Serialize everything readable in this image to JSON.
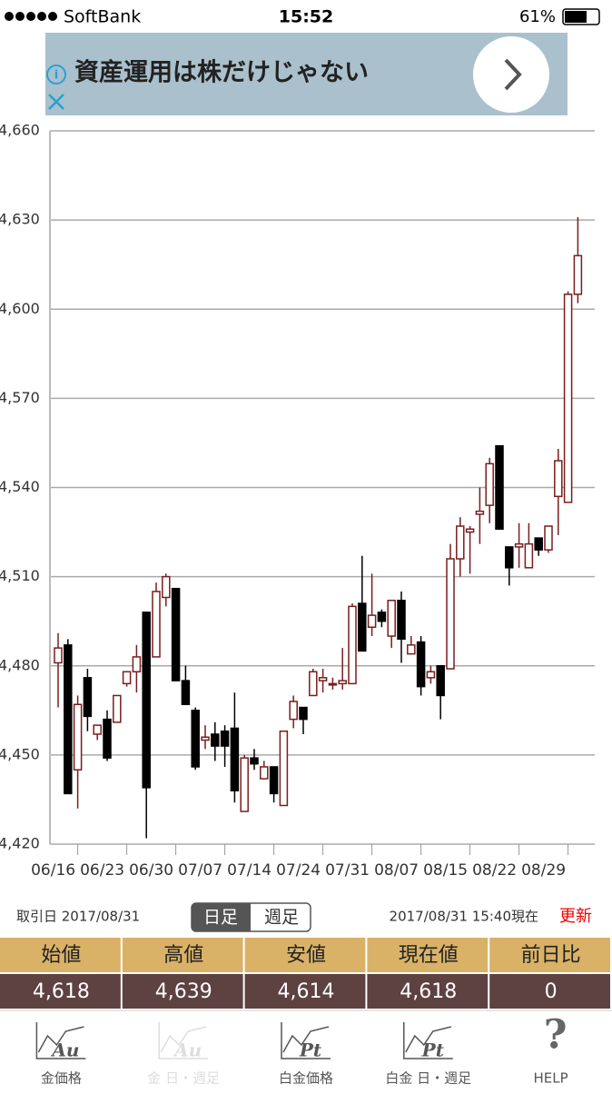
{
  "status_bar": {
    "carrier": "SoftBank",
    "time": "15:52",
    "battery": "61%"
  },
  "ad": {
    "text": "資産運用は株だけじゃない"
  },
  "chart_data": {
    "type": "candlestick",
    "categories": [
      null,
      null,
      "06/16",
      null,
      null,
      null,
      null,
      "06/23",
      null,
      null,
      null,
      null,
      "06/30",
      null,
      null,
      null,
      null,
      "07/07",
      null,
      null,
      null,
      null,
      "07/14",
      null,
      null,
      null,
      null,
      "07/24",
      null,
      null,
      null,
      null,
      "07/31",
      null,
      null,
      null,
      null,
      "08/07",
      null,
      null,
      null,
      null,
      "08/15",
      null,
      null,
      null,
      null,
      "08/22",
      null,
      null,
      null,
      null,
      "08/29",
      null
    ],
    "open": [
      4481,
      4487,
      4445,
      4476,
      4457,
      4462,
      4461,
      4474,
      4478,
      4498,
      4483,
      4503,
      4506,
      4475,
      4465,
      4455,
      4457,
      4458,
      4459,
      4431,
      4449,
      4442,
      4446,
      4433,
      4462,
      4466,
      4470,
      4475,
      4474,
      4474,
      4474,
      4501,
      4493,
      4498,
      4490,
      4502,
      4484,
      4488,
      4476,
      4480,
      4479,
      4516,
      4525,
      4531,
      4534,
      4554,
      4520,
      4520,
      4513,
      4523,
      4519,
      4537,
      4535,
      4605
    ],
    "high": [
      4491,
      4489,
      4470,
      4479,
      4460,
      4465,
      4470,
      4478,
      4487,
      4498,
      4508,
      4511,
      4506,
      4480,
      4466,
      4460,
      4461,
      4460,
      4471,
      4450,
      4452,
      4448,
      4446,
      4458,
      4470,
      4466,
      4479,
      4479,
      4476,
      4486,
      4501,
      4517,
      4511,
      4499,
      4502,
      4505,
      4490,
      4490,
      4480,
      4480,
      4521,
      4530,
      4527,
      4540,
      4550,
      4554,
      4520,
      4528,
      4528,
      4523,
      4527,
      4553,
      4606,
      4631
    ],
    "low": [
      4466,
      4437,
      4432,
      4458,
      4455,
      4448,
      4461,
      4473,
      4471,
      4422,
      4483,
      4500,
      4475,
      4467,
      4445,
      4452,
      4448,
      4446,
      4434,
      4431,
      4445,
      4442,
      4434,
      4433,
      4459,
      4457,
      4470,
      4471,
      4472,
      4472,
      4474,
      4485,
      4490,
      4493,
      4486,
      4481,
      4484,
      4470,
      4474,
      4462,
      4479,
      4510,
      4511,
      4521,
      4528,
      4526,
      4507,
      4513,
      4513,
      4517,
      4518,
      4524,
      4535,
      4602
    ],
    "close": [
      4486,
      4437,
      4467,
      4463,
      4460,
      4449,
      4470,
      4478,
      4483,
      4439,
      4505,
      4510,
      4475,
      4467,
      4446,
      4456,
      4453,
      4453,
      4438,
      4449,
      4447,
      4446,
      4437,
      4458,
      4468,
      4462,
      4478,
      4476,
      4474,
      4475,
      4500,
      4485,
      4497,
      4495,
      4502,
      4489,
      4487,
      4473,
      4478,
      4470,
      4516,
      4527,
      4526,
      4532,
      4548,
      4526,
      4513,
      4521,
      4521,
      4519,
      4527,
      4549,
      4605,
      4618
    ],
    "up_color": "#7b1c1c",
    "down_color": "#000000",
    "ylim": [
      4420,
      4660
    ],
    "yticks": [
      {
        "value": 4420,
        "label": "4,420"
      },
      {
        "value": 4450,
        "label": "4,450"
      },
      {
        "value": 4480,
        "label": "4,480"
      },
      {
        "value": 4510,
        "label": "4,510"
      },
      {
        "value": 4540,
        "label": "4,540"
      },
      {
        "value": 4570,
        "label": "4,570"
      },
      {
        "value": 4600,
        "label": "4,600"
      },
      {
        "value": 4630,
        "label": "4,630"
      },
      {
        "value": 4660,
        "label": "4,660"
      }
    ],
    "grid": true
  },
  "info": {
    "trade_date": "取引日 2017/08/31",
    "toggle": [
      "日足",
      "週足"
    ],
    "as_of": "2017/08/31 15:40現在",
    "refresh": "更新"
  },
  "table": {
    "headers": [
      "始値",
      "高値",
      "安値",
      "現在値",
      "前日比"
    ],
    "values": [
      "4,618",
      "4,639",
      "4,614",
      "4,618",
      "0"
    ]
  },
  "tabs": [
    {
      "label": "金価格",
      "icon": "Au"
    },
    {
      "label": "金 日・週足",
      "icon": "Au"
    },
    {
      "label": "白金価格",
      "icon": "Pt"
    },
    {
      "label": "白金 日・週足",
      "icon": "Pt"
    },
    {
      "label": "HELP",
      "icon": "?"
    }
  ]
}
